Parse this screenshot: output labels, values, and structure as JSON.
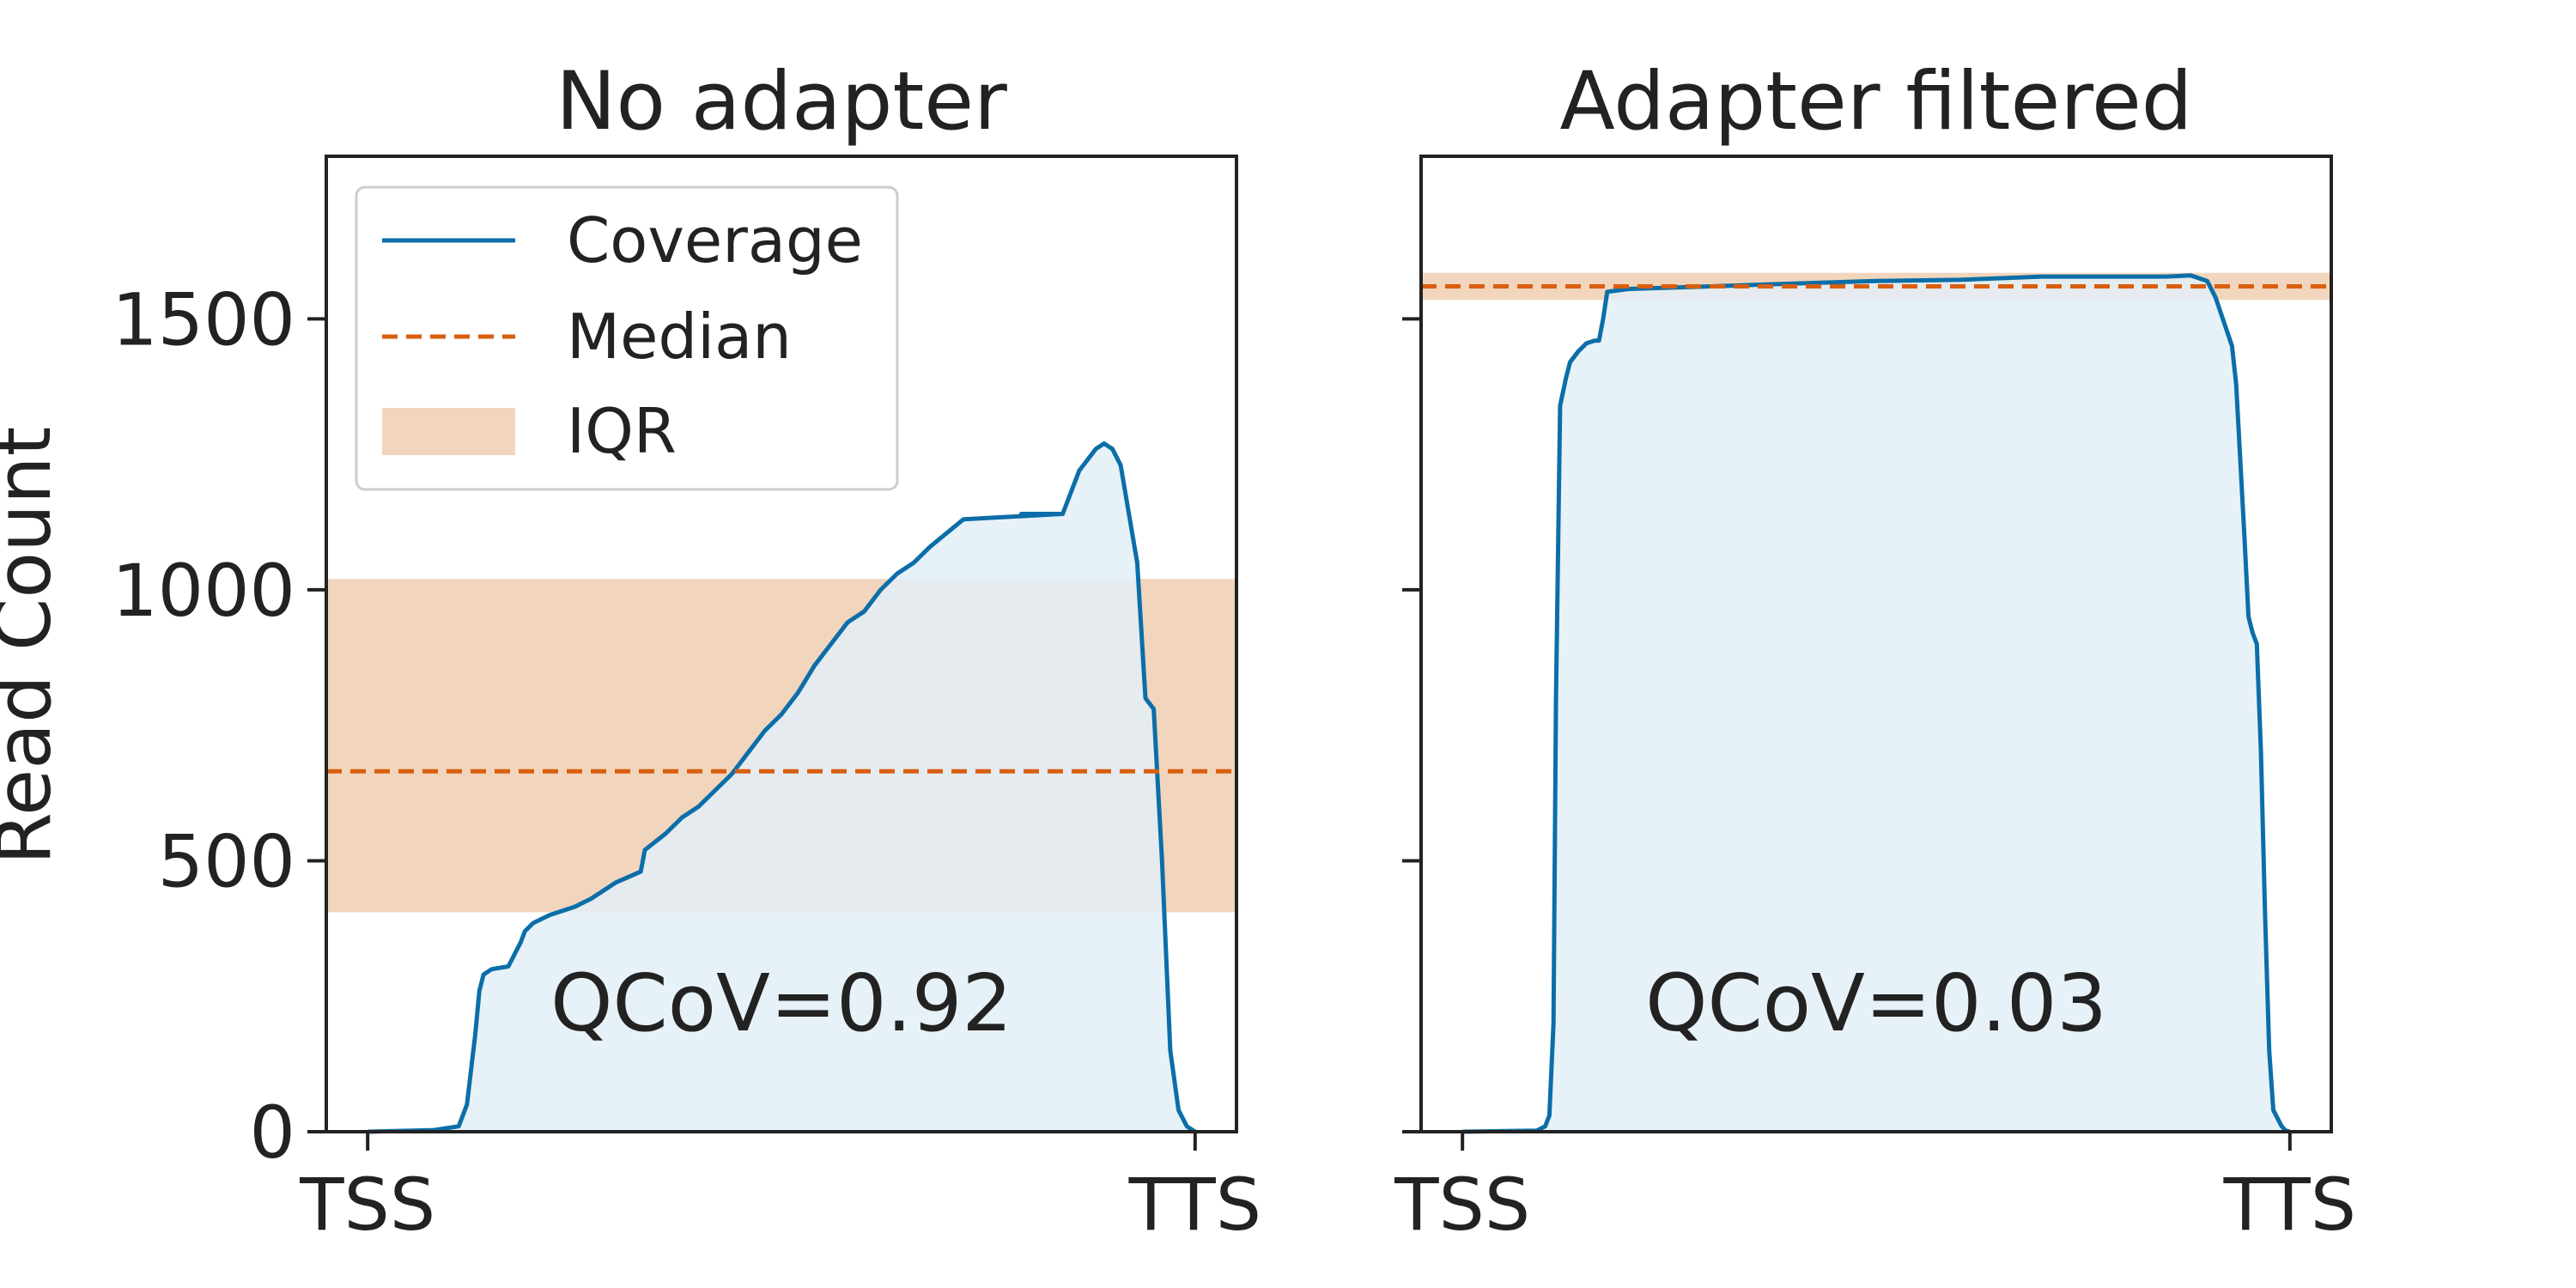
{
  "chart_data": {
    "type": "line",
    "ylabel": "Read Count",
    "ylim": [
      0,
      1800
    ],
    "yticks": [
      0,
      500,
      1000,
      1500
    ],
    "xtick_labels": [
      "TSS",
      "TTS"
    ],
    "xlim": [
      -0.05,
      1.05
    ],
    "legend": {
      "placement": "upper-left",
      "entries": [
        "Coverage",
        "Median",
        "IQR"
      ]
    },
    "colors": {
      "coverage": "#0c6ea8",
      "coverage_fill": "#e3eff7",
      "median": "#d95f0e",
      "iqr": "#f2d5bd"
    },
    "panels": [
      {
        "title": "No adapter",
        "annotation": "QCoV=0.92",
        "median": 665,
        "iqr": [
          405,
          1020
        ],
        "coverage": {
          "x": [
            0,
            0.08,
            0.11,
            0.12,
            0.13,
            0.135,
            0.14,
            0.145,
            0.15,
            0.17,
            0.185,
            0.19,
            0.2,
            0.22,
            0.25,
            0.27,
            0.3,
            0.33,
            0.335,
            0.36,
            0.38,
            0.4,
            0.42,
            0.44,
            0.46,
            0.48,
            0.5,
            0.52,
            0.54,
            0.56,
            0.58,
            0.6,
            0.62,
            0.64,
            0.66,
            0.68,
            0.72,
            0.84,
            0.79,
            0.8,
            0.81,
            0.82,
            0.83,
            0.84,
            0.86,
            0.88,
            0.89,
            0.9,
            0.91,
            0.93,
            0.94,
            0.95,
            0.96,
            0.97,
            0.98,
            0.99,
            1.0
          ],
          "y": [
            0,
            3,
            10,
            50,
            180,
            260,
            290,
            295,
            300,
            305,
            350,
            370,
            385,
            400,
            415,
            430,
            460,
            480,
            520,
            550,
            580,
            600,
            630,
            660,
            700,
            740,
            770,
            810,
            860,
            900,
            940,
            960,
            1000,
            1030,
            1050,
            1080,
            1130,
            1140,
            1140,
            1140,
            1140,
            1140,
            1140,
            1140,
            1220,
            1260,
            1270,
            1260,
            1230,
            1050,
            800,
            780,
            500,
            150,
            40,
            10,
            0
          ]
        }
      },
      {
        "title": "Adapter filtered",
        "annotation": "QCoV=0.03",
        "median": 1560,
        "iqr": [
          1535,
          1585
        ],
        "coverage": {
          "x": [
            0,
            0.09,
            0.1,
            0.105,
            0.11,
            0.113,
            0.118,
            0.125,
            0.13,
            0.14,
            0.15,
            0.16,
            0.165,
            0.17,
            0.175,
            0.2,
            0.3,
            0.4,
            0.5,
            0.6,
            0.7,
            0.8,
            0.85,
            0.88,
            0.9,
            0.91,
            0.93,
            0.935,
            0.945,
            0.95,
            0.955,
            0.96,
            0.965,
            0.97,
            0.975,
            0.98,
            0.99,
            0.995,
            1.0
          ],
          "y": [
            0,
            2,
            10,
            30,
            200,
            800,
            1340,
            1390,
            1420,
            1440,
            1455,
            1460,
            1460,
            1500,
            1550,
            1555,
            1560,
            1565,
            1570,
            1572,
            1578,
            1578,
            1578,
            1580,
            1570,
            1540,
            1450,
            1380,
            1100,
            950,
            920,
            900,
            700,
            400,
            150,
            40,
            10,
            2,
            0
          ]
        }
      }
    ]
  }
}
